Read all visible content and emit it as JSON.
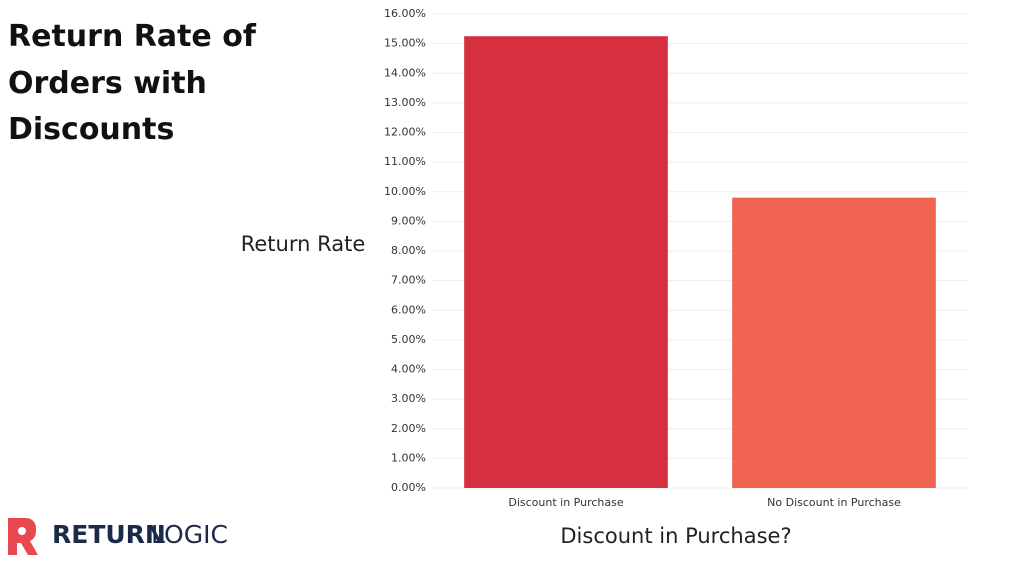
{
  "chart_data": {
    "type": "bar",
    "title": "Return Rate of Orders with Discounts",
    "x_label": "Discount in Purchase?",
    "y_label": "Return Rate",
    "categories": [
      "Discount in Purchase",
      "No Discount in Purchase"
    ],
    "values": [
      15.25,
      9.8
    ],
    "colors": [
      "#d62f3f",
      "#f06351"
    ],
    "ylim": [
      0,
      16
    ],
    "yticks": [
      {
        "value": 0,
        "label": "0.00%"
      },
      {
        "value": 1,
        "label": "1.00%"
      },
      {
        "value": 2,
        "label": "2.00%"
      },
      {
        "value": 3,
        "label": "3.00%"
      },
      {
        "value": 4,
        "label": "4.00%"
      },
      {
        "value": 5,
        "label": "5.00%"
      },
      {
        "value": 6,
        "label": "6.00%"
      },
      {
        "value": 7,
        "label": "7.00%"
      },
      {
        "value": 8,
        "label": "8.00%"
      },
      {
        "value": 9,
        "label": "9.00%"
      },
      {
        "value": 10,
        "label": "10.00%"
      },
      {
        "value": 11,
        "label": "11.00%"
      },
      {
        "value": 12,
        "label": "12.00%"
      },
      {
        "value": 13,
        "label": "13.00%"
      },
      {
        "value": 14,
        "label": "14.00%"
      },
      {
        "value": 15,
        "label": "15.00%"
      },
      {
        "value": 16,
        "label": "16.00%"
      }
    ],
    "grid": true
  },
  "logo": {
    "part1": "RETURN",
    "part2": "LOGIC"
  }
}
